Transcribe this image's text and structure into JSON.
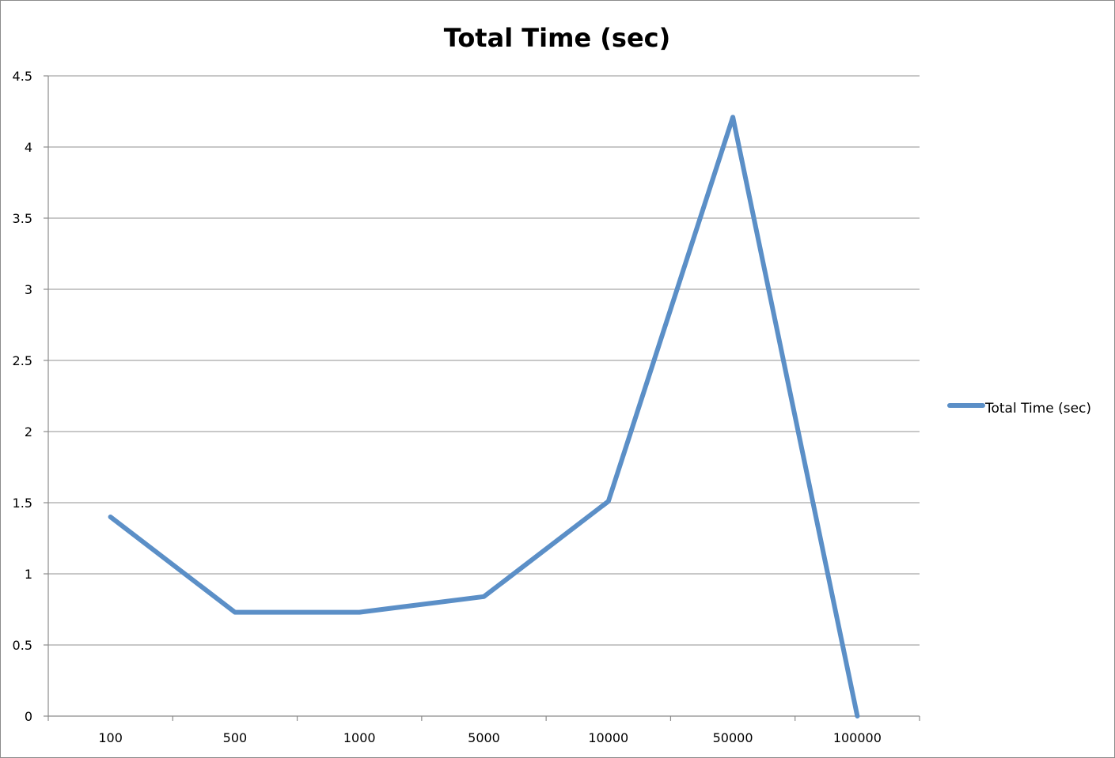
{
  "chart_data": {
    "type": "line",
    "title": "Total Time (sec)",
    "xlabel": "",
    "ylabel": "",
    "categories": [
      "100",
      "500",
      "1000",
      "5000",
      "10000",
      "50000",
      "100000"
    ],
    "series": [
      {
        "name": "Total Time (sec)",
        "values": [
          1.4,
          0.73,
          0.73,
          0.84,
          1.51,
          4.21,
          0
        ],
        "color": "#5b8fc7"
      }
    ],
    "ylim": [
      0,
      4.5
    ],
    "y_ticks": [
      "0",
      "0.5",
      "1",
      "1.5",
      "2",
      "2.5",
      "3",
      "3.5",
      "4",
      "4.5"
    ],
    "grid": true,
    "legend_position": "right",
    "colors": {
      "gridline": "#a6a6a6",
      "axis": "#8c8c8c"
    }
  }
}
